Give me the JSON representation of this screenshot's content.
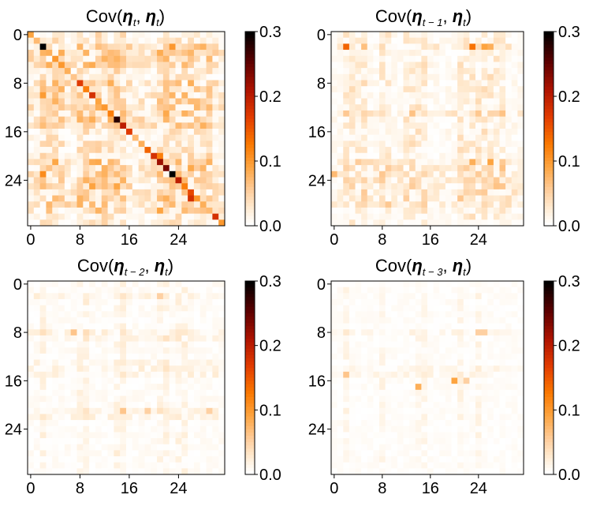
{
  "chart_data": [
    {
      "type": "heatmap",
      "title": "Cov(η_t, η_t)",
      "title_parts": {
        "prefix": "Cov(",
        "var1": "η",
        "sub1": "t",
        "sep": ", ",
        "var2": "η",
        "sub2": "t",
        "suffix": ")"
      },
      "size": 32,
      "xticks": [
        0,
        8,
        16,
        24
      ],
      "yticks": [
        0,
        8,
        16,
        24
      ],
      "xtick_labels": [
        "0",
        "8",
        "16",
        "24"
      ],
      "ytick_labels": [
        "0",
        "8",
        "16",
        "24"
      ],
      "show_xticks": true,
      "clim": [
        0.0,
        0.3
      ],
      "colorbar_ticks": [
        "0.0",
        "0.1",
        "0.2",
        "0.3"
      ],
      "colormap": "gist_heat_r",
      "diagonal": [
        0.09,
        0.07,
        0.3,
        0.08,
        0.1,
        0.1,
        0.08,
        0.06,
        0.17,
        0.12,
        0.18,
        0.09,
        0.1,
        0.12,
        0.28,
        0.2,
        0.17,
        0.07,
        0.08,
        0.14,
        0.18,
        0.22,
        0.24,
        0.3,
        0.2,
        0.12,
        0.16,
        0.1,
        0.08,
        0.07,
        0.18,
        0.1
      ],
      "hot_columns": [
        2,
        3,
        4,
        5,
        8,
        9,
        10,
        11,
        12,
        13,
        14,
        15,
        21,
        22,
        23,
        24,
        25,
        26,
        27,
        28,
        29
      ],
      "hot_rows": [
        2,
        3,
        4,
        5,
        8,
        9,
        10,
        11,
        12,
        13,
        14,
        15,
        21,
        22,
        23,
        24,
        25,
        26,
        27,
        28,
        29
      ],
      "offdiag_max": 0.08,
      "highlights": [
        [
          23,
          2,
          0.11
        ],
        [
          27,
          26,
          0.18
        ],
        [
          20,
          21,
          0.12
        ],
        [
          10,
          14,
          0.06
        ],
        [
          2,
          23,
          0.1
        ]
      ],
      "seed": 11
    },
    {
      "type": "heatmap",
      "title": "Cov(η_{t-1}, η_t)",
      "title_parts": {
        "prefix": "Cov(",
        "var1": "η",
        "sub1": "t − 1",
        "sep": ", ",
        "var2": "η",
        "sub2": "t",
        "suffix": ")"
      },
      "size": 32,
      "xticks": [
        0,
        8,
        16,
        24
      ],
      "yticks": [
        0,
        8,
        16,
        24
      ],
      "xtick_labels": [
        "0",
        "8",
        "16",
        "24"
      ],
      "ytick_labels": [
        "0",
        "8",
        "16",
        "24"
      ],
      "show_xticks": true,
      "clim": [
        0.0,
        0.3
      ],
      "colorbar_ticks": [
        "0.0",
        "0.1",
        "0.2",
        "0.3"
      ],
      "colormap": "gist_heat_r",
      "diagonal": [],
      "hot_columns": [
        2,
        3,
        4,
        5,
        8,
        9,
        12,
        13,
        14,
        15,
        21,
        22,
        23,
        24,
        25,
        26,
        27,
        28
      ],
      "hot_rows": [
        2,
        13,
        21,
        22,
        23,
        24,
        25,
        26,
        27,
        28
      ],
      "offdiag_max": 0.06,
      "highlights": [
        [
          2,
          2,
          0.14
        ],
        [
          2,
          23,
          0.13
        ],
        [
          2,
          25,
          0.09
        ],
        [
          2,
          26,
          0.08
        ],
        [
          21,
          23,
          0.08
        ],
        [
          21,
          26,
          0.09
        ],
        [
          23,
          0,
          0.07
        ]
      ],
      "seed": 23
    },
    {
      "type": "heatmap",
      "title": "Cov(η_{t-2}, η_t)",
      "title_parts": {
        "prefix": "Cov(",
        "var1": "η",
        "sub1": "t − 2",
        "sep": ", ",
        "var2": "η",
        "sub2": "t",
        "suffix": ")"
      },
      "size": 32,
      "xticks": [
        0,
        8,
        16,
        24
      ],
      "yticks": [
        0,
        8,
        16,
        24
      ],
      "xtick_labels": [
        "0",
        "8",
        "16",
        "24"
      ],
      "ytick_labels": [
        "0",
        "8",
        "16",
        "24"
      ],
      "show_xticks": true,
      "clim": [
        0.0,
        0.3
      ],
      "colorbar_ticks": [
        "0.0",
        "0.1",
        "0.2",
        "0.3"
      ],
      "colormap": "gist_heat_r",
      "diagonal": [],
      "hot_columns": [
        2,
        8,
        9,
        14,
        15,
        21,
        22,
        24,
        25
      ],
      "hot_rows": [
        2,
        8,
        9,
        13,
        14,
        15,
        21,
        22
      ],
      "offdiag_max": 0.035,
      "highlights": [
        [
          8,
          7,
          0.06
        ],
        [
          21,
          15,
          0.06
        ],
        [
          21,
          19,
          0.05
        ],
        [
          21,
          29,
          0.05
        ],
        [
          2,
          21,
          0.05
        ]
      ],
      "seed": 37
    },
    {
      "type": "heatmap",
      "title": "Cov(η_{t-3}, η_t)",
      "title_parts": {
        "prefix": "Cov(",
        "var1": "η",
        "sub1": "t − 3",
        "sep": ", ",
        "var2": "η",
        "sub2": "t",
        "suffix": ")"
      },
      "size": 32,
      "xticks": [
        0,
        8,
        16,
        24
      ],
      "yticks": [
        0,
        8,
        16,
        24
      ],
      "xtick_labels": [
        "0",
        "8",
        "16",
        "24"
      ],
      "ytick_labels": [
        "0",
        "8",
        "16",
        "24"
      ],
      "show_xticks": true,
      "clim": [
        0.0,
        0.3
      ],
      "colorbar_ticks": [
        "0.0",
        "0.1",
        "0.2",
        "0.3"
      ],
      "colormap": "gist_heat_r",
      "diagonal": [],
      "hot_columns": [
        2,
        8,
        14,
        15,
        21,
        24
      ],
      "hot_rows": [
        8,
        14,
        15
      ],
      "offdiag_max": 0.028,
      "highlights": [
        [
          16,
          20,
          0.09
        ],
        [
          17,
          14,
          0.08
        ],
        [
          15,
          2,
          0.06
        ],
        [
          16,
          22,
          0.05
        ],
        [
          8,
          24,
          0.05
        ],
        [
          8,
          25,
          0.05
        ]
      ],
      "seed": 53
    }
  ]
}
